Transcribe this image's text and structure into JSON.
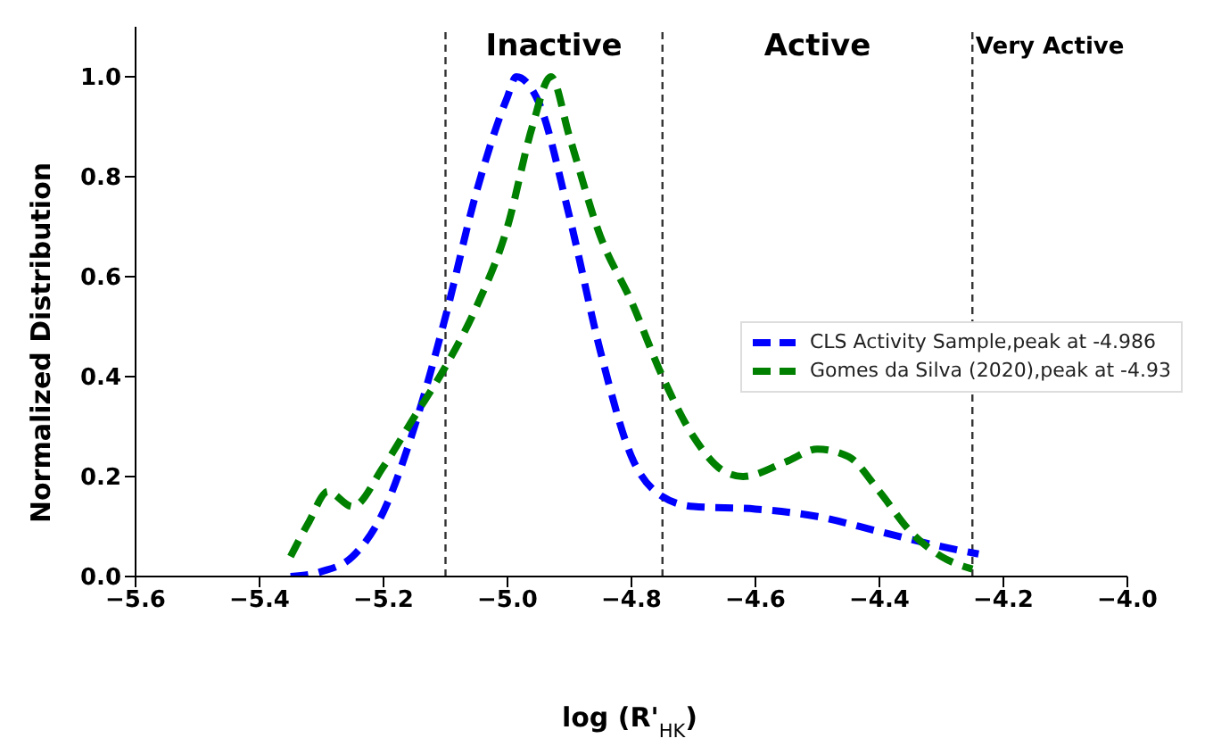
{
  "chart_data": {
    "type": "line",
    "xlabel": "log (R'$_{HK}$)",
    "ylabel": "Normalized Distribution",
    "xlim": [
      -5.6,
      -4.0
    ],
    "xticks": [
      -5.6,
      -5.4,
      -5.2,
      {
        "value": -5,
        "label": "−5.0"
      },
      -4.8,
      -4.6,
      -4.4,
      -4.2,
      {
        "value": -4,
        "label": "−4.0"
      }
    ],
    "ylim": [
      0,
      1.1
    ],
    "yticks": [
      {
        "value": 0,
        "label": "0.0"
      },
      0.2,
      0.4,
      0.6,
      0.8,
      {
        "value": 1,
        "label": "1.0"
      }
    ],
    "legend": "right",
    "line_style": "dashed",
    "marker": "none",
    "series": [
      {
        "name": "CLS Activity Sample,peak at -4.986",
        "color": "#0000ff",
        "x": [
          -5.35,
          -5.3,
          -5.25,
          -5.2,
          -5.15,
          -5.1,
          -5.05,
          -5.0,
          -4.986,
          -4.95,
          -4.9,
          -4.85,
          -4.8,
          -4.75,
          -4.7,
          -4.6,
          -4.5,
          -4.4,
          -4.3,
          -4.24
        ],
        "values": [
          0.0,
          0.01,
          0.04,
          0.13,
          0.3,
          0.52,
          0.77,
          0.96,
          1.0,
          0.95,
          0.72,
          0.45,
          0.24,
          0.16,
          0.14,
          0.135,
          0.12,
          0.09,
          0.06,
          0.045
        ]
      },
      {
        "name": "Gomes da Silva (2020),peak at -4.93",
        "color": "#008000",
        "x": [
          -5.35,
          -5.32,
          -5.29,
          -5.25,
          -5.2,
          -5.15,
          -5.1,
          -5.05,
          -5.0,
          -4.96,
          -4.93,
          -4.9,
          -4.85,
          -4.8,
          -4.75,
          -4.7,
          -4.65,
          -4.62,
          -4.55,
          -4.5,
          -4.45,
          -4.4,
          -4.35,
          -4.3,
          -4.25
        ],
        "values": [
          0.04,
          0.11,
          0.17,
          0.14,
          0.22,
          0.32,
          0.42,
          0.54,
          0.7,
          0.9,
          1.0,
          0.88,
          0.68,
          0.55,
          0.4,
          0.28,
          0.21,
          0.2,
          0.23,
          0.255,
          0.24,
          0.17,
          0.09,
          0.04,
          0.015
        ]
      }
    ],
    "ref_lines": [
      {
        "axis": "x",
        "value": -5.1,
        "label": null,
        "color": "#333333",
        "line_style": "dashed"
      },
      {
        "axis": "x",
        "value": -4.75,
        "label": null,
        "color": "#333333",
        "line_style": "dashed"
      },
      {
        "axis": "x",
        "value": -4.25,
        "label": null,
        "color": "#333333",
        "line_style": "dashed"
      }
    ],
    "annotations": [
      "Inactive",
      "Active",
      "Very Active"
    ]
  }
}
